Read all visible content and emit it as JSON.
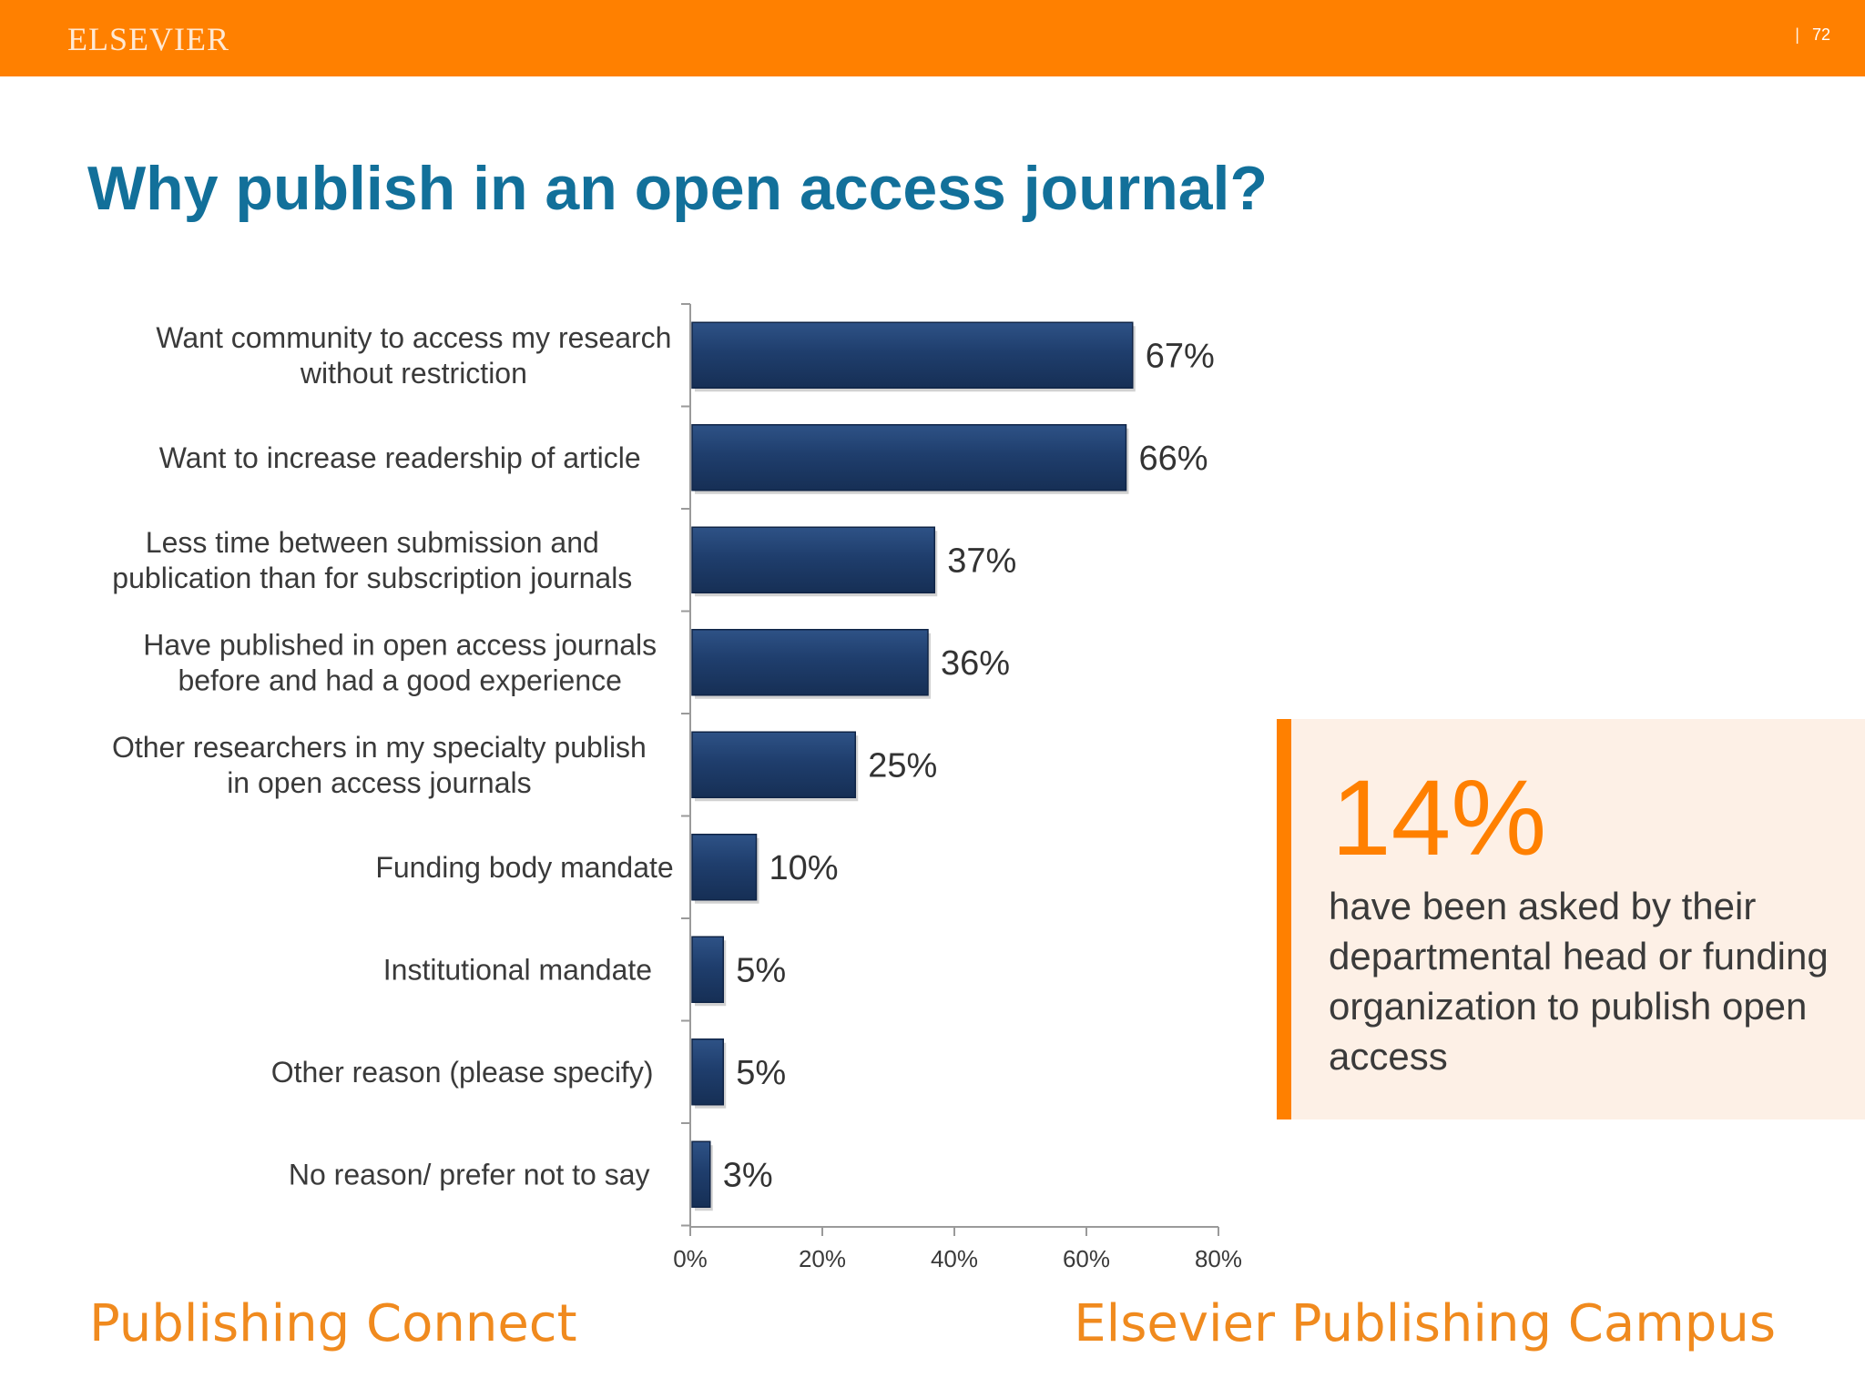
{
  "header": {
    "brand": "ELSEVIER",
    "separator": "|",
    "page_number": "72",
    "bar_color": "#ff8000"
  },
  "title": "Why publish in an open access journal?",
  "chart_data": {
    "type": "bar",
    "orientation": "horizontal",
    "title": "",
    "xlabel": "",
    "ylabel": "",
    "categories": [
      [
        "Want community to access my research",
        "without restriction"
      ],
      [
        "Want to increase readership of article"
      ],
      [
        "Less time between submission and",
        "publication than for subscription journals"
      ],
      [
        "Have published in open access journals",
        "before and had a good experience"
      ],
      [
        "Other researchers in my specialty publish",
        "in open access journals"
      ],
      [
        "Funding body mandate"
      ],
      [
        "Institutional mandate"
      ],
      [
        "Other reason (please specify)"
      ],
      [
        "No reason/ prefer not to say"
      ]
    ],
    "values": [
      67,
      66,
      37,
      36,
      25,
      10,
      5,
      5,
      3
    ],
    "value_labels": [
      "67%",
      "66%",
      "37%",
      "36%",
      "25%",
      "10%",
      "5%",
      "5%",
      "3%"
    ],
    "xlim": [
      0,
      80
    ],
    "x_ticks": [
      0,
      20,
      40,
      60,
      80
    ],
    "x_tick_labels": [
      "0%",
      "20%",
      "40%",
      "60%",
      "80%"
    ],
    "bar_color": "#1f3e6d",
    "grid": false,
    "legend": "none"
  },
  "callout": {
    "value": "14%",
    "text": "have been asked by their departmental head or funding organization to publish open access",
    "accent_color": "#ff8000",
    "background_color": "#fdf0e6"
  },
  "footer": {
    "left": "Publishing Connect",
    "right": "Elsevier Publishing Campus",
    "color": "#f08a1e"
  }
}
